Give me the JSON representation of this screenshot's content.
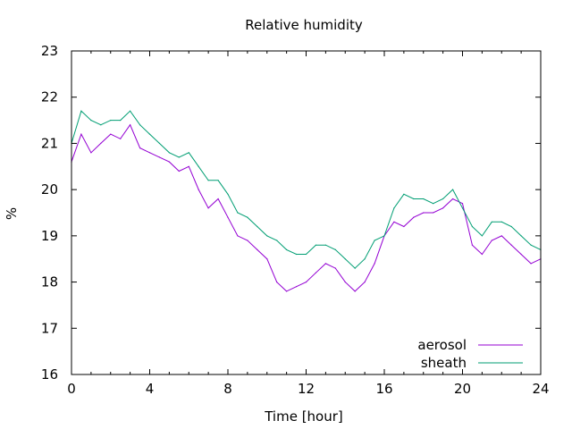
{
  "chart_data": {
    "type": "line",
    "title": "Relative humidity",
    "xlabel": "Time [hour]",
    "ylabel": "%",
    "xlim": [
      0,
      24
    ],
    "ylim": [
      16,
      23
    ],
    "xticks": [
      0,
      4,
      8,
      12,
      16,
      20,
      24
    ],
    "yticks": [
      16,
      17,
      18,
      19,
      20,
      21,
      22,
      23
    ],
    "grid": false,
    "legend_position": "bottom-right",
    "series": [
      {
        "name": "aerosol",
        "color": "#9400d3",
        "points": [
          [
            0.0,
            20.6
          ],
          [
            0.5,
            21.2
          ],
          [
            1.0,
            20.8
          ],
          [
            1.5,
            21.0
          ],
          [
            2.0,
            21.2
          ],
          [
            2.5,
            21.1
          ],
          [
            3.0,
            21.4
          ],
          [
            3.5,
            20.9
          ],
          [
            4.0,
            20.8
          ],
          [
            4.5,
            20.7
          ],
          [
            5.0,
            20.6
          ],
          [
            5.5,
            20.4
          ],
          [
            6.0,
            20.5
          ],
          [
            6.5,
            20.0
          ],
          [
            7.0,
            19.6
          ],
          [
            7.5,
            19.8
          ],
          [
            8.0,
            19.4
          ],
          [
            8.5,
            19.0
          ],
          [
            9.0,
            18.9
          ],
          [
            9.5,
            18.7
          ],
          [
            10.0,
            18.5
          ],
          [
            10.5,
            18.0
          ],
          [
            11.0,
            17.8
          ],
          [
            11.5,
            17.9
          ],
          [
            12.0,
            18.0
          ],
          [
            12.5,
            18.2
          ],
          [
            13.0,
            18.4
          ],
          [
            13.5,
            18.3
          ],
          [
            14.0,
            18.0
          ],
          [
            14.5,
            17.8
          ],
          [
            15.0,
            18.0
          ],
          [
            15.5,
            18.4
          ],
          [
            16.0,
            19.0
          ],
          [
            16.5,
            19.3
          ],
          [
            17.0,
            19.2
          ],
          [
            17.5,
            19.4
          ],
          [
            18.0,
            19.5
          ],
          [
            18.5,
            19.5
          ],
          [
            19.0,
            19.6
          ],
          [
            19.5,
            19.8
          ],
          [
            20.0,
            19.7
          ],
          [
            20.5,
            18.8
          ],
          [
            21.0,
            18.6
          ],
          [
            21.5,
            18.9
          ],
          [
            22.0,
            19.0
          ],
          [
            22.5,
            18.8
          ],
          [
            23.0,
            18.6
          ],
          [
            23.5,
            18.4
          ],
          [
            24.0,
            18.5
          ]
        ]
      },
      {
        "name": "sheath",
        "color": "#009e73",
        "points": [
          [
            0.0,
            21.0
          ],
          [
            0.5,
            21.7
          ],
          [
            1.0,
            21.5
          ],
          [
            1.5,
            21.4
          ],
          [
            2.0,
            21.5
          ],
          [
            2.5,
            21.5
          ],
          [
            3.0,
            21.7
          ],
          [
            3.5,
            21.4
          ],
          [
            4.0,
            21.2
          ],
          [
            4.5,
            21.0
          ],
          [
            5.0,
            20.8
          ],
          [
            5.5,
            20.7
          ],
          [
            6.0,
            20.8
          ],
          [
            6.5,
            20.5
          ],
          [
            7.0,
            20.2
          ],
          [
            7.5,
            20.2
          ],
          [
            8.0,
            19.9
          ],
          [
            8.5,
            19.5
          ],
          [
            9.0,
            19.4
          ],
          [
            9.5,
            19.2
          ],
          [
            10.0,
            19.0
          ],
          [
            10.5,
            18.9
          ],
          [
            11.0,
            18.7
          ],
          [
            11.5,
            18.6
          ],
          [
            12.0,
            18.6
          ],
          [
            12.5,
            18.8
          ],
          [
            13.0,
            18.8
          ],
          [
            13.5,
            18.7
          ],
          [
            14.0,
            18.5
          ],
          [
            14.5,
            18.3
          ],
          [
            15.0,
            18.5
          ],
          [
            15.5,
            18.9
          ],
          [
            16.0,
            19.0
          ],
          [
            16.5,
            19.6
          ],
          [
            17.0,
            19.9
          ],
          [
            17.5,
            19.8
          ],
          [
            18.0,
            19.8
          ],
          [
            18.5,
            19.7
          ],
          [
            19.0,
            19.8
          ],
          [
            19.5,
            20.0
          ],
          [
            20.0,
            19.6
          ],
          [
            20.5,
            19.2
          ],
          [
            21.0,
            19.0
          ],
          [
            21.5,
            19.3
          ],
          [
            22.0,
            19.3
          ],
          [
            22.5,
            19.2
          ],
          [
            23.0,
            19.0
          ],
          [
            23.5,
            18.8
          ],
          [
            24.0,
            18.7
          ]
        ]
      }
    ]
  }
}
